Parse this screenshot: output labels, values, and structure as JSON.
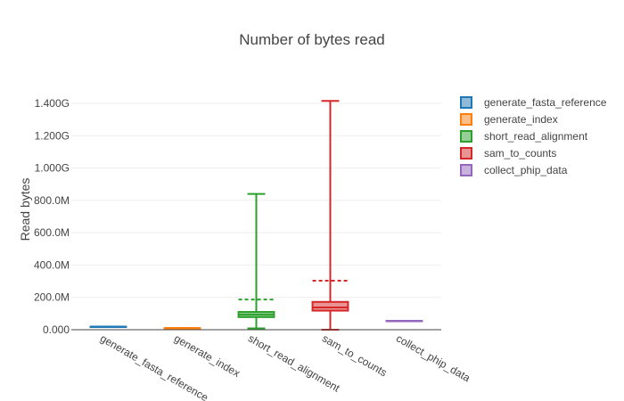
{
  "chart_data": {
    "type": "box",
    "title": "Number of bytes read",
    "xlabel": "",
    "ylabel": "Read bytes",
    "ylim": [
      0,
      1400000000
    ],
    "yticks": [
      {
        "value": 0,
        "label": "0.000"
      },
      {
        "value": 200000000,
        "label": "200.0M"
      },
      {
        "value": 400000000,
        "label": "400.0M"
      },
      {
        "value": 600000000,
        "label": "600.0M"
      },
      {
        "value": 800000000,
        "label": "800.0M"
      },
      {
        "value": 1000000000,
        "label": "1.000G"
      },
      {
        "value": 1200000000,
        "label": "1.200G"
      },
      {
        "value": 1400000000,
        "label": "1.400G"
      }
    ],
    "grid": true,
    "legend_position": "top-right",
    "categories": [
      "generate_fasta_reference",
      "generate_index",
      "short_read_alignment",
      "sam_to_counts",
      "collect_phip_data"
    ],
    "series": [
      {
        "name": "generate_fasta_reference",
        "color": "#1f77b4",
        "min": 19000000,
        "q1": 19000000,
        "median": 19000000,
        "q3": 19000000,
        "max": 19000000,
        "mean": 19000000
      },
      {
        "name": "generate_index",
        "color": "#ff7f0e",
        "min": 10000000,
        "q1": 10000000,
        "median": 10000000,
        "q3": 10000000,
        "max": 10000000,
        "mean": 10000000
      },
      {
        "name": "short_read_alignment",
        "color": "#2ca02c",
        "min": 8000000,
        "q1": 78000000,
        "median": 93000000,
        "q3": 110000000,
        "max": 840000000,
        "mean": 187000000
      },
      {
        "name": "sam_to_counts",
        "color": "#d62728",
        "min": 0,
        "q1": 118000000,
        "median": 138000000,
        "q3": 172000000,
        "max": 1415000000,
        "mean": 303000000
      },
      {
        "name": "collect_phip_data",
        "color": "#9467bd",
        "min": 55000000,
        "q1": 55000000,
        "median": 55000000,
        "q3": 55000000,
        "max": 55000000,
        "mean": 55000000
      }
    ]
  }
}
